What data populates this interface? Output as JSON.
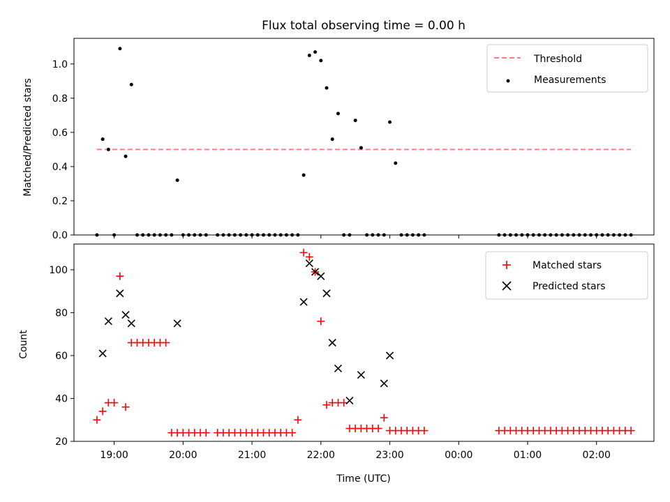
{
  "title": "Flux total observing time = 0.00 h",
  "chart_data": [
    {
      "type": "scatter",
      "panel": "top",
      "title": "Flux total observing time = 0.00 h",
      "xlabel": "",
      "ylabel": "Matched/Predicted stars",
      "ylim": [
        0,
        1.15
      ],
      "yticks": [
        0.0,
        0.2,
        0.4,
        0.6,
        0.8,
        1.0
      ],
      "ytick_labels": [
        "0.0",
        "0.2",
        "0.4",
        "0.6",
        "0.8",
        "1.0"
      ],
      "xlim": [
        "18:25",
        "02:50"
      ],
      "legend": {
        "placement": "upper right",
        "entries": [
          "Threshold",
          "Measurements"
        ]
      },
      "threshold": {
        "name": "Threshold",
        "value": 0.5,
        "x_start": "18:45",
        "x_end": "02:30",
        "color": "#ff7f7f"
      },
      "series": [
        {
          "name": "Measurements",
          "color": "#000000",
          "x": [
            "18:45",
            "18:50",
            "18:55",
            "19:00",
            "19:05",
            "19:10",
            "19:15",
            "19:20",
            "19:25",
            "19:30",
            "19:35",
            "19:40",
            "19:45",
            "19:50",
            "19:55",
            "20:00",
            "20:05",
            "20:10",
            "20:15",
            "20:20",
            "20:30",
            "20:35",
            "20:40",
            "20:45",
            "20:50",
            "20:55",
            "21:00",
            "21:05",
            "21:10",
            "21:15",
            "21:20",
            "21:25",
            "21:30",
            "21:35",
            "21:40",
            "21:45",
            "21:50",
            "21:55",
            "22:00",
            "22:05",
            "22:10",
            "22:15",
            "22:20",
            "22:25",
            "22:30",
            "22:35",
            "22:40",
            "22:45",
            "22:50",
            "22:55",
            "23:00",
            "23:05",
            "23:10",
            "23:15",
            "23:20",
            "23:25",
            "23:30",
            "00:35",
            "00:40",
            "00:45",
            "00:50",
            "00:55",
            "01:00",
            "01:05",
            "01:10",
            "01:15",
            "01:20",
            "01:25",
            "01:30",
            "01:35",
            "01:40",
            "01:45",
            "01:50",
            "01:55",
            "02:00",
            "02:05",
            "02:10",
            "02:15",
            "02:20",
            "02:25",
            "02:30"
          ],
          "y": [
            0.0,
            0.56,
            0.5,
            0.0,
            1.09,
            0.46,
            0.88,
            0.0,
            0.0,
            0.0,
            0.0,
            0.0,
            0.0,
            0.0,
            0.32,
            0.0,
            0.0,
            0.0,
            0.0,
            0.0,
            0.0,
            0.0,
            0.0,
            0.0,
            0.0,
            0.0,
            0.0,
            0.0,
            0.0,
            0.0,
            0.0,
            0.0,
            0.0,
            0.0,
            0.0,
            0.35,
            1.05,
            1.07,
            1.02,
            0.86,
            0.56,
            0.71,
            0.0,
            0.0,
            0.67,
            0.51,
            0.0,
            0.0,
            0.0,
            0.0,
            0.66,
            0.42,
            0.0,
            0.0,
            0.0,
            0.0,
            0.0,
            0.0,
            0.0,
            0.0,
            0.0,
            0.0,
            0.0,
            0.0,
            0.0,
            0.0,
            0.0,
            0.0,
            0.0,
            0.0,
            0.0,
            0.0,
            0.0,
            0.0,
            0.0,
            0.0,
            0.0,
            0.0,
            0.0,
            0.0,
            0.0
          ]
        }
      ]
    },
    {
      "type": "scatter",
      "panel": "bottom",
      "xlabel": "Time (UTC)",
      "ylabel": "Count",
      "ylim": [
        20,
        112
      ],
      "yticks": [
        20,
        40,
        60,
        80,
        100
      ],
      "ytick_labels": [
        "20",
        "40",
        "60",
        "80",
        "100"
      ],
      "xlim": [
        "18:25",
        "02:50"
      ],
      "xticks": [
        "19:00",
        "20:00",
        "21:00",
        "22:00",
        "23:00",
        "00:00",
        "01:00",
        "02:00"
      ],
      "xtick_labels": [
        "19:00",
        "20:00",
        "21:00",
        "22:00",
        "23:00",
        "00:00",
        "01:00",
        "02:00"
      ],
      "legend": {
        "placement": "upper right",
        "entries": [
          "Matched stars",
          "Predicted stars"
        ]
      },
      "series": [
        {
          "name": "Matched stars",
          "marker": "plus",
          "color": "#ff0000",
          "x": [
            "18:45",
            "18:50",
            "18:55",
            "19:00",
            "19:05",
            "19:10",
            "19:15",
            "19:20",
            "19:25",
            "19:30",
            "19:35",
            "19:40",
            "19:45",
            "19:50",
            "19:55",
            "20:00",
            "20:05",
            "20:10",
            "20:15",
            "20:20",
            "20:30",
            "20:35",
            "20:40",
            "20:45",
            "20:50",
            "20:55",
            "21:00",
            "21:05",
            "21:10",
            "21:15",
            "21:20",
            "21:25",
            "21:30",
            "21:35",
            "21:40",
            "21:45",
            "21:50",
            "21:55",
            "22:00",
            "22:05",
            "22:10",
            "22:15",
            "22:20",
            "22:25",
            "22:30",
            "22:35",
            "22:40",
            "22:45",
            "22:50",
            "22:55",
            "23:00",
            "23:05",
            "23:10",
            "23:15",
            "23:20",
            "23:25",
            "23:30",
            "00:35",
            "00:40",
            "00:45",
            "00:50",
            "00:55",
            "01:00",
            "01:05",
            "01:10",
            "01:15",
            "01:20",
            "01:25",
            "01:30",
            "01:35",
            "01:40",
            "01:45",
            "01:50",
            "01:55",
            "02:00",
            "02:05",
            "02:10",
            "02:15",
            "02:20",
            "02:25",
            "02:30"
          ],
          "y": [
            30,
            34,
            38,
            38,
            97,
            36,
            66,
            66,
            66,
            66,
            66,
            66,
            66,
            24,
            24,
            24,
            24,
            24,
            24,
            24,
            24,
            24,
            24,
            24,
            24,
            24,
            24,
            24,
            24,
            24,
            24,
            24,
            24,
            24,
            30,
            108,
            106,
            99,
            76,
            37,
            38,
            38,
            38,
            26,
            26,
            26,
            26,
            26,
            26,
            31,
            25,
            25,
            25,
            25,
            25,
            25,
            25,
            25,
            25,
            25,
            25,
            25,
            25,
            25,
            25,
            25,
            25,
            25,
            25,
            25,
            25,
            25,
            25,
            25,
            25,
            25,
            25,
            25,
            25,
            25,
            25
          ]
        },
        {
          "name": "Predicted stars",
          "marker": "x",
          "color": "#000000",
          "x": [
            "18:50",
            "18:55",
            "19:05",
            "19:10",
            "19:15",
            "19:55",
            "21:45",
            "21:50",
            "21:55",
            "22:00",
            "22:05",
            "22:10",
            "22:15",
            "22:25",
            "22:35",
            "22:55",
            "23:00"
          ],
          "y": [
            61,
            76,
            89,
            79,
            75,
            75,
            85,
            103,
            99,
            97,
            89,
            66,
            54,
            39,
            51,
            47,
            60
          ]
        }
      ]
    }
  ]
}
